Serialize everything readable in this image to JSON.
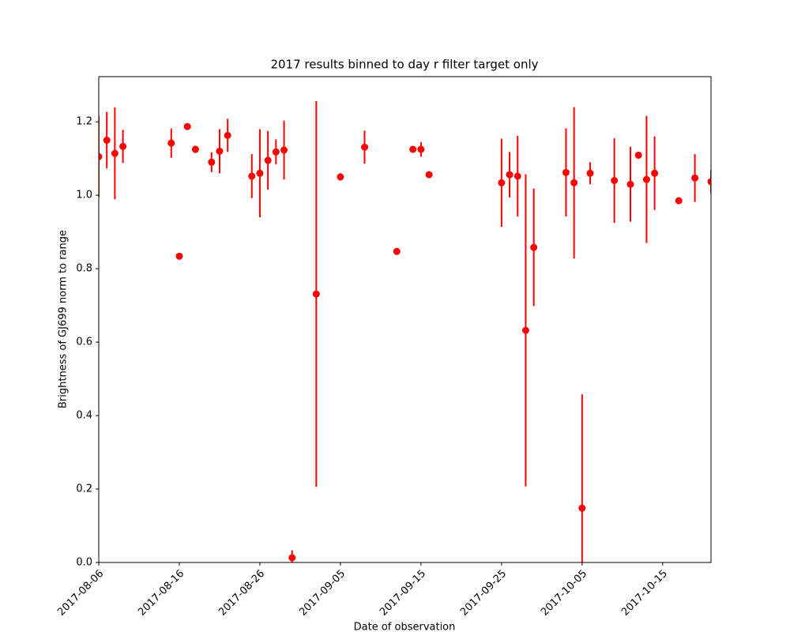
{
  "chart_data": {
    "type": "errorbar",
    "title": "2017 results binned to day r filter target only",
    "x_label": "Date of observation",
    "y_label": "Brightness of GJ699 norm to range",
    "xlim": [
      "2017-08-06",
      "2017-10-21"
    ],
    "xticks": [
      "2017-08-06",
      "2017-08-16",
      "2017-08-26",
      "2017-09-05",
      "2017-09-15",
      "2017-09-25",
      "2017-10-05",
      "2017-10-15"
    ],
    "ylim": [
      0,
      1.323
    ],
    "yticks": [
      {
        "value": 0,
        "label": "0.0"
      },
      0.2,
      0.4,
      0.6,
      0.8,
      {
        "value": 1,
        "label": "1.0"
      },
      1.2
    ],
    "grid": false,
    "series": [
      {
        "color": "#ff0000",
        "x": [
          "2017-08-06",
          "2017-08-07",
          "2017-08-08",
          "2017-08-09",
          "2017-08-15",
          "2017-08-16",
          "2017-08-17",
          "2017-08-18",
          "2017-08-20",
          "2017-08-21",
          "2017-08-22",
          "2017-08-25",
          "2017-08-26",
          "2017-08-27",
          "2017-08-28",
          "2017-08-29",
          "2017-08-30",
          "2017-09-02",
          "2017-09-05",
          "2017-09-08",
          "2017-09-12",
          "2017-09-14",
          "2017-09-15",
          "2017-09-16",
          "2017-09-25",
          "2017-09-26",
          "2017-09-27",
          "2017-09-28",
          "2017-09-29",
          "2017-10-03",
          "2017-10-04",
          "2017-10-05",
          "2017-10-06",
          "2017-10-09",
          "2017-10-11",
          "2017-10-12",
          "2017-10-13",
          "2017-10-14",
          "2017-10-17",
          "2017-10-19",
          "2017-10-21"
        ],
        "values": [
          1.105,
          1.15,
          1.114,
          1.133,
          1.142,
          0.834,
          1.187,
          1.125,
          1.09,
          1.12,
          1.163,
          1.052,
          1.06,
          1.095,
          1.118,
          1.123,
          0.013,
          0.731,
          1.05,
          1.131,
          0.847,
          1.125,
          1.125,
          1.056,
          1.034,
          1.056,
          1.052,
          0.632,
          0.858,
          1.062,
          1.034,
          0.148,
          1.06,
          1.04,
          1.03,
          1.109,
          1.043,
          1.06,
          0.985,
          1.047,
          1.037
        ],
        "errors": [
          0.11,
          0.077,
          0.125,
          0.045,
          0.04,
          0.005,
          0.005,
          0.01,
          0.027,
          0.06,
          0.045,
          0.06,
          0.12,
          0.08,
          0.034,
          0.08,
          0.02,
          0.525,
          0.01,
          0.045,
          0.005,
          0.005,
          0.02,
          0.005,
          0.12,
          0.062,
          0.11,
          0.425,
          0.16,
          0.12,
          0.206,
          0.31,
          0.03,
          0.115,
          0.102,
          0.005,
          0.173,
          0.1,
          0.005,
          0.065,
          0.032
        ]
      }
    ]
  }
}
